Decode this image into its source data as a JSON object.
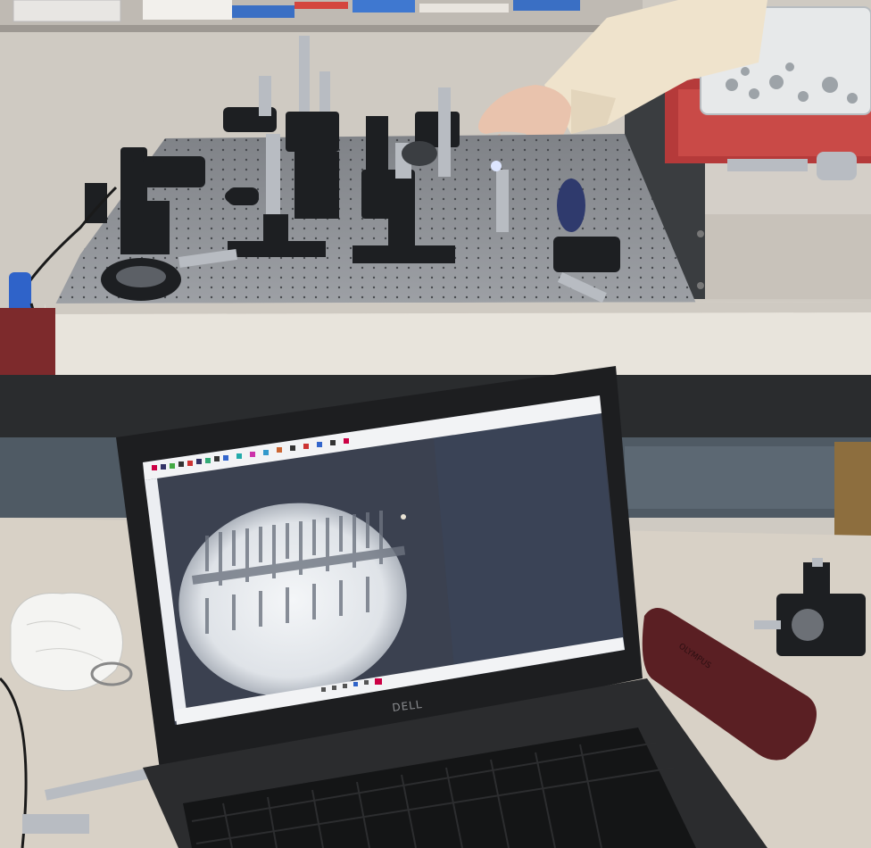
{
  "scene": {
    "laptop_brand": "DELL",
    "eyepiece_label": "OLYMPUS"
  },
  "colors": {
    "wall": "#cfcac2",
    "optical_table_top": "#8e8f93",
    "table_edge": "#e8e4dc",
    "desk": "#d8d1c6",
    "dark_band": "#2a2c2e",
    "laptop_body": "#1d1e20",
    "screen_bg": "#3b4150",
    "screen_window": "#f2f3f5",
    "microscope_view": "#e9ecef",
    "red_case": "#b53a3a",
    "eyepiece_case": "#5a1f23",
    "sleeve": "#efe3cc"
  }
}
